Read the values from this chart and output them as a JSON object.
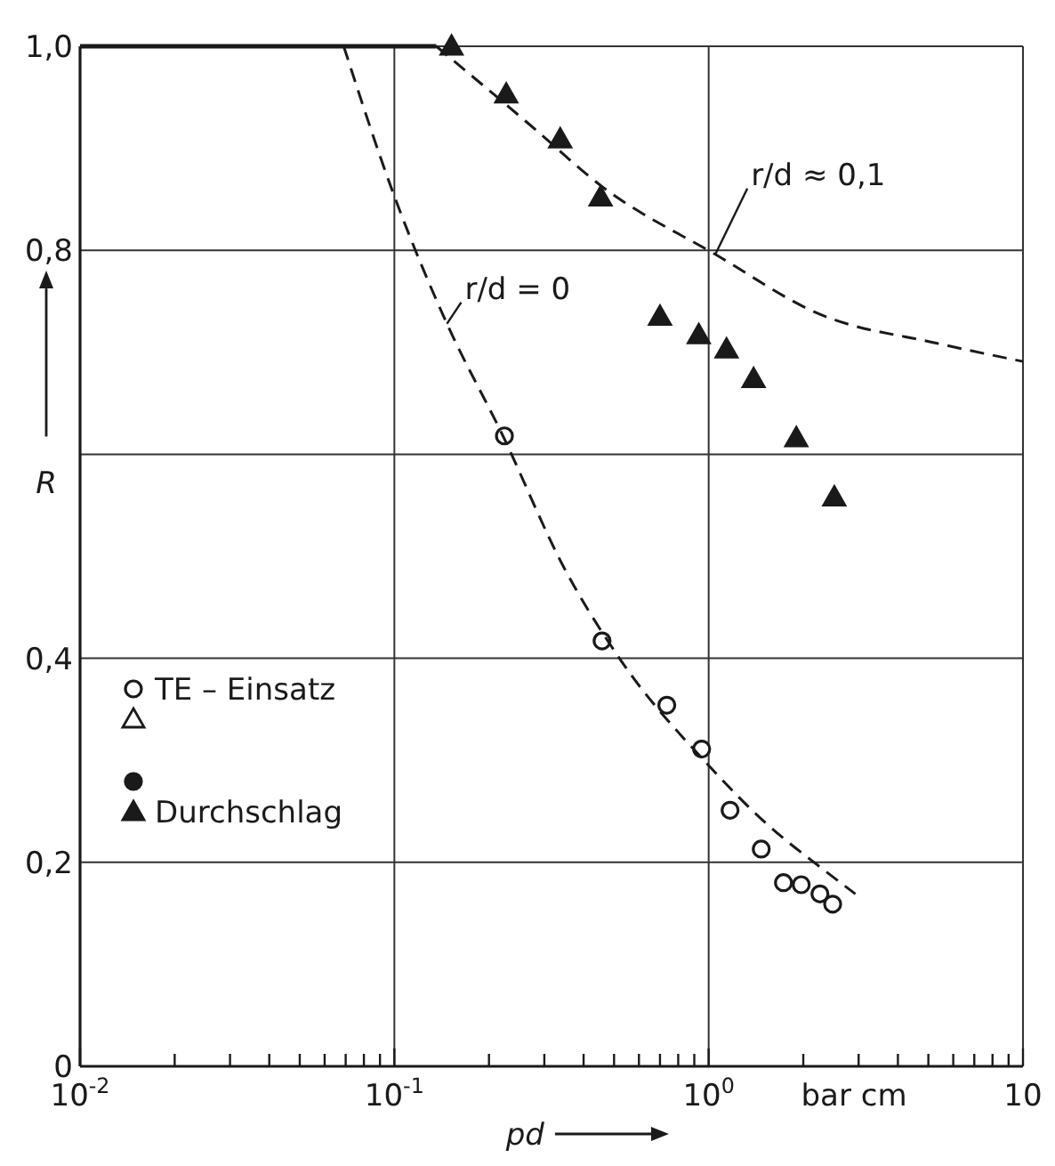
{
  "chart_data": {
    "type": "scatter",
    "xlabel": "pd",
    "ylabel": "R",
    "log": "x",
    "xlim": [
      0.01,
      10
    ],
    "ylim": [
      0,
      1
    ],
    "xticks": [
      {
        "value": 0.01,
        "label": "10$^{-2}$"
      },
      {
        "value": 0.02,
        "label": null
      },
      {
        "value": 0.03,
        "label": null
      },
      {
        "value": 0.04,
        "label": null
      },
      {
        "value": 0.05,
        "label": null
      },
      {
        "value": 0.06,
        "label": null
      },
      {
        "value": 0.07,
        "label": null
      },
      {
        "value": 0.08,
        "label": null
      },
      {
        "value": 0.09,
        "label": null
      },
      {
        "value": 0.1,
        "label": "10$^{-1}$"
      },
      {
        "value": 0.2,
        "label": null
      },
      {
        "value": 0.3,
        "label": null
      },
      {
        "value": 0.4,
        "label": null
      },
      {
        "value": 0.5,
        "label": null
      },
      {
        "value": 0.6,
        "label": null
      },
      {
        "value": 0.7,
        "label": null
      },
      {
        "value": 0.8,
        "label": null
      },
      {
        "value": 0.9,
        "label": null
      },
      {
        "value": 1,
        "label": "10$^{0}$"
      },
      {
        "value": 2,
        "label": null
      },
      {
        "value": 3,
        "label": null
      },
      {
        "value": 4,
        "label": null
      },
      {
        "value": 5,
        "label": null
      },
      {
        "value": 6,
        "label": null
      },
      {
        "value": 7,
        "label": null
      },
      {
        "value": 8,
        "label": null
      },
      {
        "value": 9,
        "label": null
      },
      10
    ],
    "yticks": [
      0,
      {
        "value": 0.2,
        "label": "0,2"
      },
      {
        "value": 0.4,
        "label": "0,4"
      },
      {
        "value": 0.6,
        "label": null
      },
      {
        "value": 0.8,
        "label": "0,8"
      },
      {
        "value": 1,
        "label": "1,0"
      }
    ],
    "grid": true,
    "legend": "left",
    "series": [
      {
        "name": "TE – Einsatz",
        "marker": "circle",
        "color": "#ffffff",
        "x": [
          0.224,
          0.458,
          0.736,
          0.95,
          1.17,
          1.47,
          1.73,
          1.97,
          2.26,
          2.48
        ],
        "values": [
          0.618,
          0.417,
          0.354,
          0.311,
          0.251,
          0.213,
          0.18,
          0.178,
          0.169,
          0.159
        ]
      },
      {
        "name": "Durchschlag",
        "marker": "triangle",
        "color": "#1a1a1a",
        "x": [
          0.152,
          0.227,
          0.337,
          0.453,
          0.7,
          0.93,
          1.14,
          1.39,
          1.9,
          2.51
        ],
        "values": [
          1.0,
          0.953,
          0.909,
          0.852,
          0.735,
          0.717,
          0.703,
          0.674,
          0.616,
          0.558
        ]
      },
      {
        "type": "line",
        "line_style": "solid",
        "color": "#1a1a1a",
        "x": [
          0.01,
          0.136
        ],
        "values": [
          1.0,
          1.0
        ]
      },
      {
        "type": "line",
        "line_style": "dashed",
        "color": "#1a1a1a",
        "x": [
          0.069,
          0.1,
          0.147,
          0.22,
          0.345,
          0.52,
          1.0,
          1.5,
          2.27,
          2.93
        ],
        "values": [
          1.0,
          0.853,
          0.728,
          0.62,
          0.49,
          0.4,
          0.295,
          0.24,
          0.195,
          0.169
        ]
      },
      {
        "type": "line",
        "line_style": "dashed",
        "color": "#1a1a1a",
        "x": [
          0.136,
          0.27,
          0.46,
          1.05,
          2.27,
          5.3,
          10
        ],
        "values": [
          1.0,
          0.923,
          0.862,
          0.796,
          0.737,
          0.709,
          0.691
        ]
      }
    ],
    "annotations": [
      {
        "text": "r/d = 0",
        "x": 0.147,
        "y": 0.728
      },
      {
        "text": "r/d ≈ 0,1",
        "x": 1.05,
        "y": 0.796
      },
      "bar cm"
    ]
  }
}
